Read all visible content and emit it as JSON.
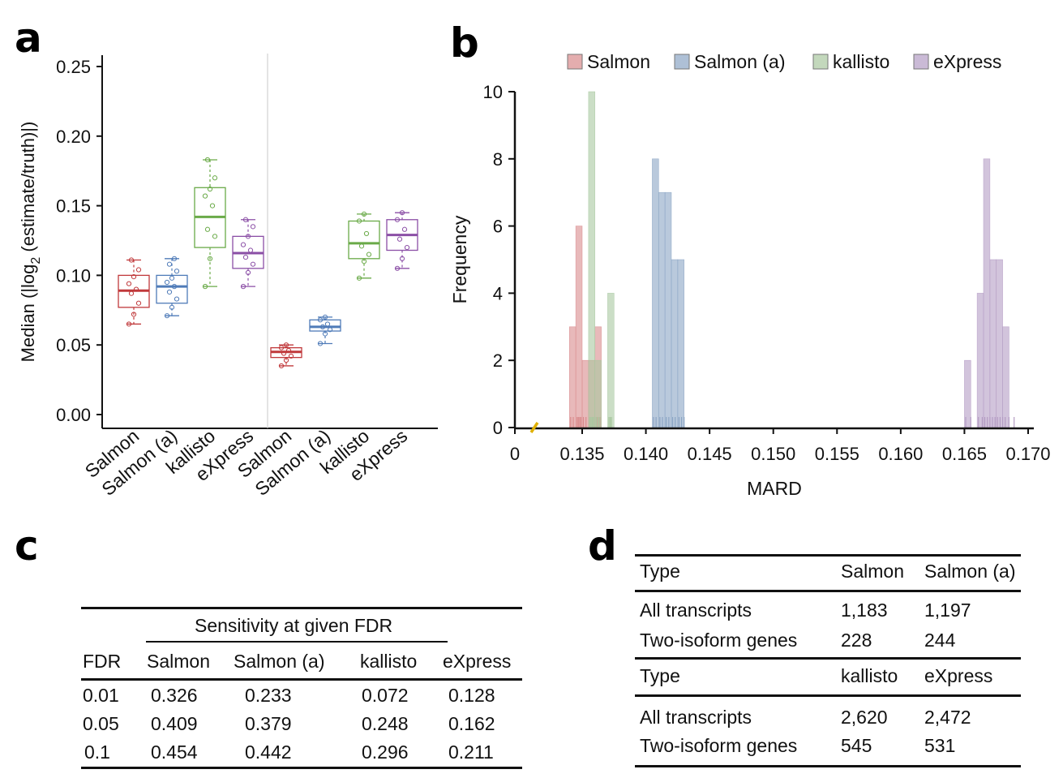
{
  "panels": {
    "a": "a",
    "b": "b",
    "c": "c",
    "d": "d"
  },
  "chart_data": [
    {
      "panel": "a",
      "type": "box",
      "ylabel": "Median (|log2 (estimate/truth)|)",
      "ylim": [
        0,
        0.25
      ],
      "yticks": [
        "0.00",
        "0.05",
        "0.10",
        "0.15",
        "0.20",
        "0.25"
      ],
      "yticks_values": [
        0.0,
        0.05,
        0.1,
        0.15,
        0.2,
        0.25
      ],
      "categories": [
        "Salmon",
        "Salmon (a)",
        "kallisto",
        "eXpress",
        "Salmon",
        "Salmon (a)",
        "kallisto",
        "eXpress"
      ],
      "groups": [
        {
          "label": "Salmon",
          "color": "#c0393b",
          "median": 0.089,
          "q1": 0.077,
          "q3": 0.1,
          "whisker_low": 0.065,
          "whisker_high": 0.111,
          "points": [
            0.065,
            0.072,
            0.08,
            0.087,
            0.09,
            0.094,
            0.099,
            0.104,
            0.111
          ]
        },
        {
          "label": "Salmon (a)",
          "color": "#4f7bb8",
          "median": 0.092,
          "q1": 0.08,
          "q3": 0.1,
          "whisker_low": 0.071,
          "whisker_high": 0.112,
          "points": [
            0.071,
            0.077,
            0.083,
            0.088,
            0.092,
            0.095,
            0.098,
            0.103,
            0.108,
            0.112
          ]
        },
        {
          "label": "kallisto",
          "color": "#6aaa48",
          "median": 0.142,
          "q1": 0.12,
          "q3": 0.163,
          "whisker_low": 0.092,
          "whisker_high": 0.183,
          "points": [
            0.092,
            0.112,
            0.128,
            0.133,
            0.15,
            0.157,
            0.162,
            0.17,
            0.183
          ]
        },
        {
          "label": "eXpress",
          "color": "#8b4fa6",
          "median": 0.116,
          "q1": 0.105,
          "q3": 0.128,
          "whisker_low": 0.092,
          "whisker_high": 0.14,
          "points": [
            0.092,
            0.102,
            0.108,
            0.113,
            0.118,
            0.122,
            0.128,
            0.135,
            0.14
          ]
        },
        {
          "label": "Salmon",
          "color": "#c0393b",
          "median": 0.045,
          "q1": 0.041,
          "q3": 0.048,
          "whisker_low": 0.035,
          "whisker_high": 0.05,
          "points": [
            0.035,
            0.039,
            0.042,
            0.044,
            0.046,
            0.048,
            0.05
          ]
        },
        {
          "label": "Salmon (a)",
          "color": "#4f7bb8",
          "median": 0.063,
          "q1": 0.06,
          "q3": 0.068,
          "whisker_low": 0.051,
          "whisker_high": 0.07,
          "points": [
            0.051,
            0.058,
            0.061,
            0.063,
            0.065,
            0.068,
            0.07
          ]
        },
        {
          "label": "kallisto",
          "color": "#6aaa48",
          "median": 0.123,
          "q1": 0.112,
          "q3": 0.139,
          "whisker_low": 0.098,
          "whisker_high": 0.144,
          "points": [
            0.098,
            0.11,
            0.115,
            0.121,
            0.13,
            0.139,
            0.144
          ]
        },
        {
          "label": "eXpress",
          "color": "#8b4fa6",
          "median": 0.129,
          "q1": 0.118,
          "q3": 0.14,
          "whisker_low": 0.105,
          "whisker_high": 0.145,
          "points": [
            0.105,
            0.112,
            0.12,
            0.126,
            0.133,
            0.14,
            0.145
          ]
        }
      ]
    },
    {
      "panel": "b",
      "type": "histogram",
      "xlabel": "MARD",
      "ylabel": "Frequency",
      "xlim": [
        0.13,
        0.17
      ],
      "ylim": [
        0,
        10
      ],
      "xticks": [
        "0",
        "0.135",
        "0.140",
        "0.145",
        "0.150",
        "0.155",
        "0.160",
        "0.165",
        "0.170"
      ],
      "yticks": [
        "0",
        "2",
        "4",
        "6",
        "8",
        "10"
      ],
      "bin_width": 0.0005,
      "legend_position": "top",
      "series": [
        {
          "name": "Salmon",
          "color": "#d98a8c",
          "bins": [
            {
              "x0": 0.134,
              "count": 3
            },
            {
              "x0": 0.1345,
              "count": 6
            },
            {
              "x0": 0.135,
              "count": 2
            },
            {
              "x0": 0.1355,
              "count": 2
            },
            {
              "x0": 0.136,
              "count": 3
            }
          ],
          "rug": [
            0.1341,
            0.1343,
            0.1346,
            0.1347,
            0.1348,
            0.1349,
            0.1351,
            0.1353,
            0.1356,
            0.1358,
            0.1361,
            0.1362,
            0.1364
          ]
        },
        {
          "name": "Salmon (a)",
          "color": "#8ba5c4",
          "bins": [
            {
              "x0": 0.1405,
              "count": 8
            },
            {
              "x0": 0.141,
              "count": 7
            },
            {
              "x0": 0.1415,
              "count": 7
            },
            {
              "x0": 0.142,
              "count": 5
            },
            {
              "x0": 0.1425,
              "count": 5
            }
          ],
          "rug": [
            0.1406,
            0.1408,
            0.1411,
            0.1413,
            0.1416,
            0.1418,
            0.1421,
            0.1423,
            0.1426,
            0.1428,
            0.143
          ]
        },
        {
          "name": "kallisto",
          "color": "#a9c8a0",
          "bins": [
            {
              "x0": 0.1355,
              "count": 10
            },
            {
              "x0": 0.136,
              "count": 2
            },
            {
              "x0": 0.137,
              "count": 4
            }
          ],
          "rug": [
            0.1356,
            0.1357,
            0.1358,
            0.1359,
            0.1361,
            0.1363,
            0.1371,
            0.1372,
            0.1373
          ]
        },
        {
          "name": "eXpress",
          "color": "#b49cc4",
          "bins": [
            {
              "x0": 0.165,
              "count": 2
            },
            {
              "x0": 0.166,
              "count": 4
            },
            {
              "x0": 0.1665,
              "count": 8
            },
            {
              "x0": 0.167,
              "count": 5
            },
            {
              "x0": 0.1675,
              "count": 5
            },
            {
              "x0": 0.168,
              "count": 3
            }
          ],
          "rug": [
            0.1651,
            0.1655,
            0.1661,
            0.1664,
            0.1666,
            0.1668,
            0.167,
            0.1672,
            0.1674,
            0.1676,
            0.1678,
            0.168,
            0.1682,
            0.1685,
            0.1689
          ]
        }
      ]
    },
    {
      "panel": "c",
      "type": "table",
      "spanner": "Sensitivity at given FDR",
      "columns": [
        "FDR",
        "Salmon",
        "Salmon (a)",
        "kallisto",
        "eXpress"
      ],
      "rows": [
        [
          "0.01",
          "0.326",
          "0.233",
          "0.072",
          "0.128"
        ],
        [
          "0.05",
          "0.409",
          "0.379",
          "0.248",
          "0.162"
        ],
        [
          "0.1",
          "0.454",
          "0.442",
          "0.296",
          "0.211"
        ]
      ]
    },
    {
      "panel": "d",
      "type": "table",
      "sections": [
        {
          "columns": [
            "Type",
            "Salmon",
            "Salmon (a)"
          ],
          "rows": [
            [
              "All transcripts",
              "1,183",
              "1,197"
            ],
            [
              "Two-isoform genes",
              "228",
              "244"
            ]
          ]
        },
        {
          "columns": [
            "Type",
            "kallisto",
            "eXpress"
          ],
          "rows": [
            [
              "All transcripts",
              "2,620",
              "2,472"
            ],
            [
              "Two-isoform genes",
              "545",
              "531"
            ]
          ]
        }
      ]
    }
  ]
}
